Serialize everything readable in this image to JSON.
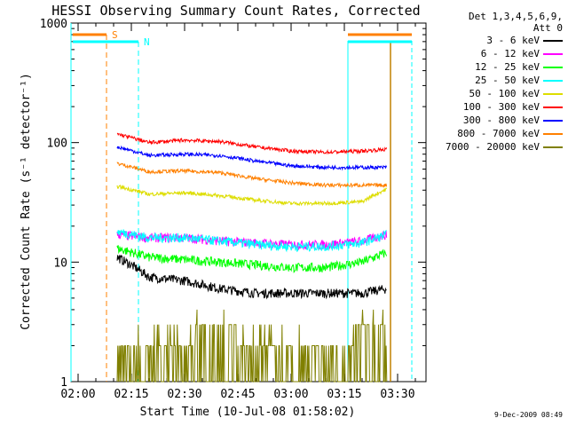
{
  "chart_data": {
    "type": "line",
    "title": "HESSI Observing Summary Count Rates, Corrected",
    "xlabel": "Start Time (10-Jul-08 01:58:02)",
    "ylabel": "Corrected Count Rate (s⁻¹ detector⁻¹)",
    "y_scale": "log",
    "ylim": [
      1,
      1000
    ],
    "y_ticks": [
      1,
      10,
      100,
      1000
    ],
    "y_tick_labels": [
      "1",
      "10",
      "100",
      "1000"
    ],
    "xlim": [
      "01:58",
      "03:38"
    ],
    "x_ticks": [
      "02:00",
      "02:15",
      "02:30",
      "02:45",
      "03:00",
      "03:15",
      "03:30"
    ],
    "x_tick_labels": [
      "02:00",
      "02:15",
      "02:30",
      "02:45",
      "03:00",
      "03:15",
      "03:30"
    ],
    "data_span": [
      "02:11",
      "03:27"
    ],
    "legend_header": [
      "Det 1,3,4,5,6,9,",
      "Att 0"
    ],
    "legend_position": "right, outside plot",
    "timestamp": "9-Dec-2009 08:49",
    "series": [
      {
        "name": "3 - 6 keV",
        "color": "#000000",
        "x": [
          "02:11",
          "02:20",
          "02:30",
          "02:40",
          "02:50",
          "03:00",
          "03:10",
          "03:20",
          "03:27"
        ],
        "values": [
          11,
          7.5,
          7,
          6,
          5.5,
          5.5,
          5.5,
          5.5,
          6
        ]
      },
      {
        "name": "6 - 12 keV",
        "color": "#ff00ff",
        "x": [
          "02:11",
          "02:20",
          "02:30",
          "02:40",
          "02:50",
          "03:00",
          "03:10",
          "03:20",
          "03:27"
        ],
        "values": [
          17,
          16,
          16,
          15,
          14.5,
          14,
          14,
          15,
          17
        ]
      },
      {
        "name": "12 - 25 keV",
        "color": "#00ff00",
        "x": [
          "02:11",
          "02:20",
          "02:30",
          "02:40",
          "02:50",
          "03:00",
          "03:10",
          "03:20",
          "03:27"
        ],
        "values": [
          13,
          11,
          10.5,
          10,
          9.5,
          9,
          9,
          10,
          12
        ]
      },
      {
        "name": "25 - 50 keV",
        "color": "#00ffff",
        "x": [
          "02:11",
          "02:20",
          "02:30",
          "02:40",
          "02:50",
          "03:00",
          "03:10",
          "03:20",
          "03:27"
        ],
        "values": [
          18,
          16,
          16,
          15,
          14,
          13.5,
          13.5,
          14.5,
          17
        ]
      },
      {
        "name": "50 - 100 keV",
        "color": "#dddd00",
        "x": [
          "02:11",
          "02:20",
          "02:30",
          "02:40",
          "02:50",
          "03:00",
          "03:10",
          "03:20",
          "03:27"
        ],
        "values": [
          43,
          37,
          38,
          36,
          33,
          31,
          31,
          32,
          41
        ]
      },
      {
        "name": "100 - 300 keV",
        "color": "#ff0000",
        "x": [
          "02:11",
          "02:20",
          "02:30",
          "02:40",
          "02:50",
          "03:00",
          "03:10",
          "03:20",
          "03:27"
        ],
        "values": [
          118,
          100,
          105,
          102,
          92,
          85,
          83,
          85,
          88
        ]
      },
      {
        "name": "300 - 800 keV",
        "color": "#0000ff",
        "x": [
          "02:11",
          "02:20",
          "02:30",
          "02:40",
          "02:50",
          "03:00",
          "03:10",
          "03:20",
          "03:27"
        ],
        "values": [
          92,
          78,
          80,
          78,
          70,
          64,
          62,
          62,
          62
        ]
      },
      {
        "name": "800 - 7000 keV",
        "color": "#ff8000",
        "x": [
          "02:11",
          "02:20",
          "02:30",
          "02:40",
          "02:50",
          "03:00",
          "03:10",
          "03:20",
          "03:27"
        ],
        "values": [
          67,
          57,
          58,
          56,
          50,
          46,
          44,
          44,
          44
        ]
      },
      {
        "name": "7000 - 20000 keV",
        "color": "#808000",
        "x": [
          "02:11",
          "02:40",
          "02:55",
          "03:20",
          "03:27"
        ],
        "values": [
          2,
          2,
          2,
          2,
          2
        ]
      }
    ],
    "annotations": [
      {
        "text": "S",
        "color": "#ff8000",
        "bar_span": [
          "01:58",
          "02:08"
        ],
        "marker_time": "02:08"
      },
      {
        "text": "N",
        "color": "#00ffff",
        "bar_span": [
          "01:58",
          "02:17"
        ],
        "marker_time": "02:17"
      }
    ]
  }
}
